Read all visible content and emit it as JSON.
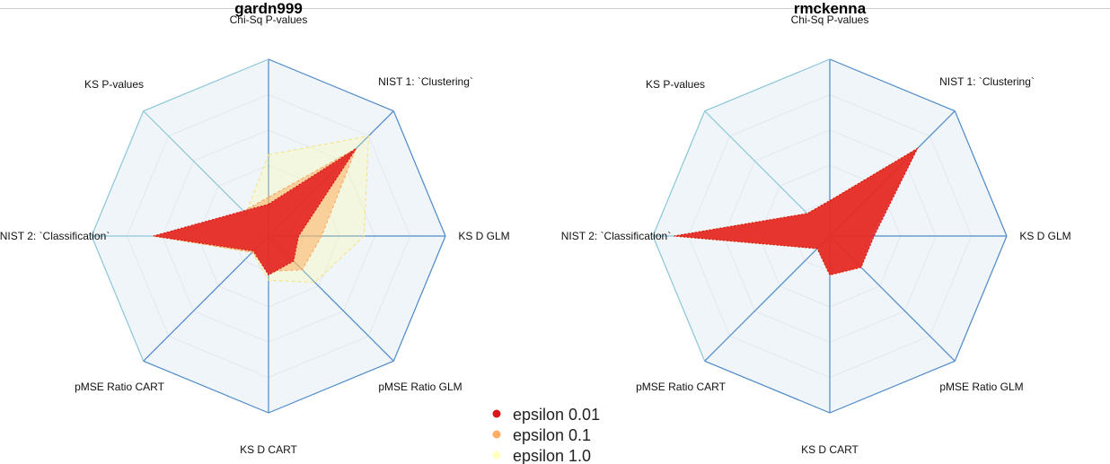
{
  "chart_data": [
    {
      "type": "radar",
      "title": "gardn999",
      "axes": [
        "Chi-Sq P-values",
        "NIST 1: `Clustering`",
        "KS D GLM",
        "pMSE Ratio GLM",
        "KS D CART",
        "pMSE Ratio CART",
        "NIST 2: `Classification`",
        "KS P-values"
      ],
      "range": [
        0,
        1
      ],
      "grid_rings": 5,
      "series": [
        {
          "name": "epsilon 0.01",
          "values": [
            0.18,
            0.7,
            0.17,
            0.2,
            0.22,
            0.12,
            0.65,
            0.2
          ]
        },
        {
          "name": "epsilon 0.1",
          "values": [
            0.22,
            0.7,
            0.3,
            0.27,
            0.2,
            0.13,
            0.65,
            0.2
          ]
        },
        {
          "name": "epsilon 1.0",
          "values": [
            0.46,
            0.8,
            0.54,
            0.37,
            0.25,
            0.13,
            0.65,
            0.18
          ]
        }
      ]
    },
    {
      "type": "radar",
      "title": "rmckenna",
      "axes": [
        "Chi-Sq P-values",
        "NIST 1: `Clustering`",
        "KS D GLM",
        "pMSE Ratio GLM",
        "KS D CART",
        "pMSE Ratio CART",
        "NIST 2: `Classification`",
        "KS P-values"
      ],
      "range": [
        0,
        1
      ],
      "grid_rings": 5,
      "series": [
        {
          "name": "epsilon 0.01",
          "values": [
            0.2,
            0.7,
            0.25,
            0.25,
            0.22,
            0.1,
            0.88,
            0.18
          ]
        },
        {
          "name": "epsilon 0.1",
          "values": [
            0.2,
            0.7,
            0.23,
            0.25,
            0.22,
            0.1,
            0.88,
            0.18
          ]
        },
        {
          "name": "epsilon 1.0",
          "values": [
            0.2,
            0.7,
            0.23,
            0.25,
            0.22,
            0.1,
            0.88,
            0.18
          ]
        }
      ]
    }
  ],
  "legend": {
    "position": "bottom-center",
    "items": [
      {
        "label": "epsilon 0.01",
        "color": "#d7191c"
      },
      {
        "label": "epsilon 0.1",
        "color": "#fdae61"
      },
      {
        "label": "epsilon 1.0",
        "color": "#ffffbf"
      }
    ]
  },
  "colors": {
    "series_fill": [
      "#e31a1c",
      "#fdae61",
      "#ffff99"
    ],
    "series_stroke": [
      "#d7191c",
      "#f4a460",
      "#f6e27a"
    ],
    "grid_panel": "#f0f5fa",
    "spoke_dark": "#4e8ac8",
    "spoke_light": "#8cc8d8"
  }
}
